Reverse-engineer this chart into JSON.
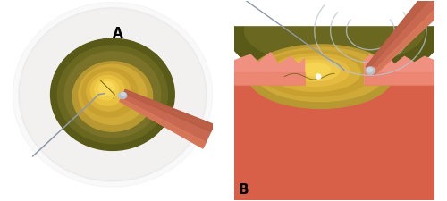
{
  "fig_width": 5.0,
  "fig_height": 2.25,
  "dpi": 100,
  "bg_color": "#ffffff",
  "label_A": "A",
  "label_B": "B",
  "label_fontsize": 11,
  "colors": {
    "cornea_outer_shadow": "#c8c8c4",
    "cornea_bg": "#f0efed",
    "cornea_rim": "#dcdcda",
    "iris_dark_outer": "#5a5a18",
    "iris_dark": "#6a6820",
    "iris_mid": "#7a7228",
    "nucleus_outer": "#b89830",
    "nucleus_mid": "#d0aa38",
    "nucleus_inner": "#e0b840",
    "nucleus_bright": "#f0c840",
    "nucleus_highlight": "#f8dc60",
    "probe_body_dark": "#b05840",
    "probe_body": "#c86850",
    "probe_body_light": "#e08060",
    "probe_tip": "#b8c0c8",
    "probe_tip_bright": "#d0d8e0",
    "chopper_wire": "#9098a8",
    "crack_line": "#806820",
    "skin_deep": "#c05030",
    "skin_mid": "#d86048",
    "skin_light": "#e88068",
    "tissue_pink": "#f09080",
    "tissue_light": "#f8b0a0",
    "wave_color": "#b8c4d0",
    "dark_ring_B": "#4a4a18"
  }
}
